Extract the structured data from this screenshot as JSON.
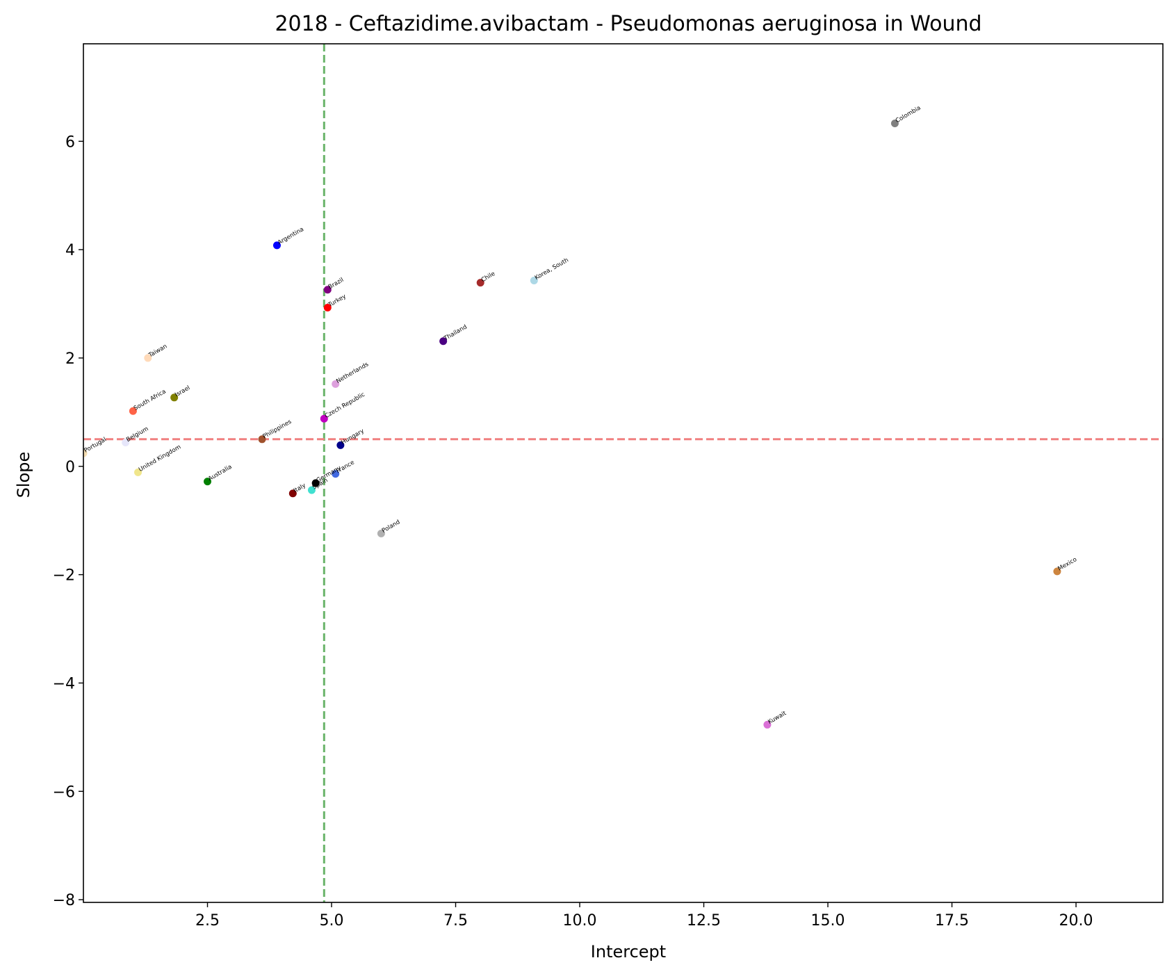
{
  "chart_data": {
    "type": "scatter",
    "title": "2018 - Ceftazidime.avibactam - Pseudomonas aeruginosa in Wound",
    "xlabel": "Intercept",
    "ylabel": "Slope",
    "xlim": [
      0.0,
      21.75
    ],
    "ylim": [
      -8.05,
      7.8
    ],
    "xticks": [
      2.5,
      5.0,
      7.5,
      10.0,
      12.5,
      15.0,
      17.5,
      20.0
    ],
    "xtick_labels": [
      "2.5",
      "5.0",
      "7.5",
      "10.0",
      "12.5",
      "15.0",
      "17.5",
      "20.0"
    ],
    "yticks": [
      -8,
      -6,
      -4,
      -2,
      0,
      2,
      4,
      6
    ],
    "ytick_labels": [
      "−8",
      "−6",
      "−4",
      "−2",
      "0",
      "2",
      "4",
      "6"
    ],
    "grid": false,
    "reference_lines": {
      "vertical_x": 4.85,
      "vertical_color": "#6ab46a",
      "horizontal_y": 0.5,
      "horizontal_color": "#f08080"
    },
    "points": [
      {
        "label": "Colombia",
        "x": 16.35,
        "y": 6.33,
        "color": "#808080"
      },
      {
        "label": "Argentina",
        "x": 3.9,
        "y": 4.08,
        "color": "#0000ff"
      },
      {
        "label": "Brazil",
        "x": 4.92,
        "y": 3.26,
        "color": "#800080"
      },
      {
        "label": "Turkey",
        "x": 4.92,
        "y": 2.93,
        "color": "#ff0000"
      },
      {
        "label": "Chile",
        "x": 8.0,
        "y": 3.39,
        "color": "#a52a2a"
      },
      {
        "label": "Korea, South",
        "x": 9.08,
        "y": 3.43,
        "color": "#add8e6"
      },
      {
        "label": "Thailand",
        "x": 7.25,
        "y": 2.31,
        "color": "#4b0082"
      },
      {
        "label": "Taiwan",
        "x": 1.3,
        "y": 2.0,
        "color": "#ffdab9"
      },
      {
        "label": "Netherlands",
        "x": 5.08,
        "y": 1.52,
        "color": "#dda0dd"
      },
      {
        "label": "South Africa",
        "x": 1.0,
        "y": 1.02,
        "color": "#ff6347"
      },
      {
        "label": "Israel",
        "x": 1.83,
        "y": 1.27,
        "color": "#808000"
      },
      {
        "label": "Czech Republic",
        "x": 4.85,
        "y": 0.88,
        "color": "#c000c0"
      },
      {
        "label": "Philippines",
        "x": 3.6,
        "y": 0.5,
        "color": "#a0522d"
      },
      {
        "label": "Hungary",
        "x": 5.18,
        "y": 0.39,
        "color": "#00008b"
      },
      {
        "label": "Belgium",
        "x": 0.85,
        "y": 0.44,
        "color": "#e6e6fa"
      },
      {
        "label": "Portugal",
        "x": 0.0,
        "y": 0.24,
        "color": "#f5deb3"
      },
      {
        "label": "United Kingdom",
        "x": 1.1,
        "y": -0.11,
        "color": "#f0e68c"
      },
      {
        "label": "Australia",
        "x": 2.5,
        "y": -0.28,
        "color": "#008000"
      },
      {
        "label": "France",
        "x": 5.08,
        "y": -0.14,
        "color": "#4169e1"
      },
      {
        "label": "Germany",
        "x": 4.68,
        "y": -0.31,
        "color": "#000000"
      },
      {
        "label": "Spain",
        "x": 4.6,
        "y": -0.44,
        "color": "#40e0d0"
      },
      {
        "label": "Italy",
        "x": 4.22,
        "y": -0.5,
        "color": "#800000"
      },
      {
        "label": "Poland",
        "x": 6.0,
        "y": -1.24,
        "color": "#b0b0b0"
      },
      {
        "label": "Mexico",
        "x": 19.62,
        "y": -1.94,
        "color": "#cd853f"
      },
      {
        "label": "Kuwait",
        "x": 13.78,
        "y": -4.77,
        "color": "#da70d6"
      }
    ]
  }
}
